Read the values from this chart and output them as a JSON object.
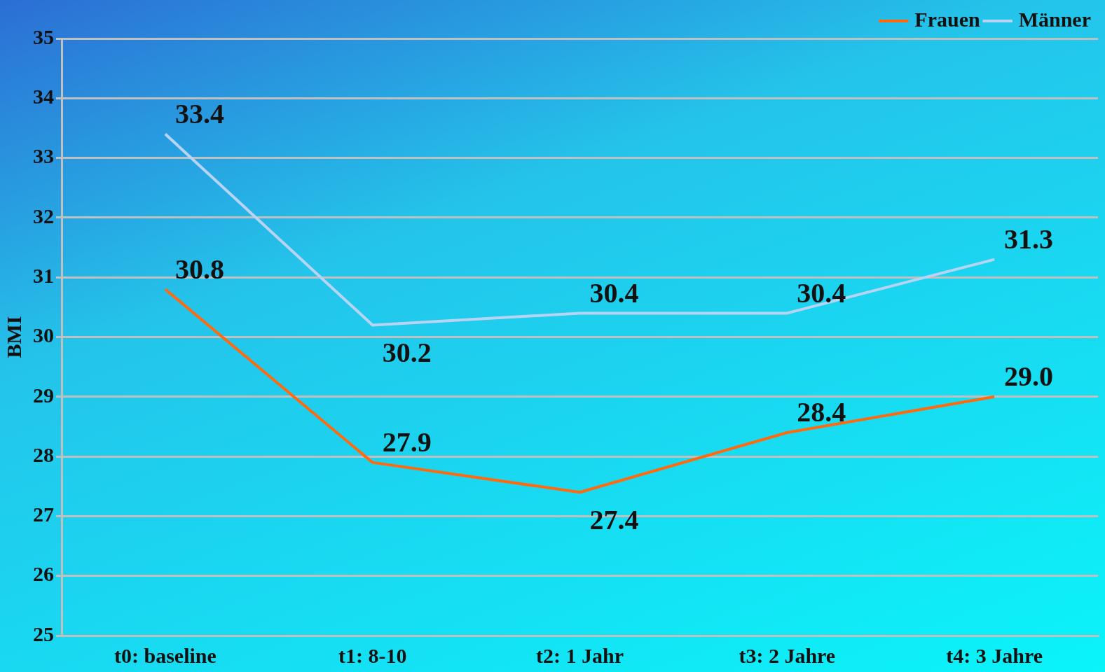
{
  "chart_data": {
    "type": "line",
    "ylabel": "BMI",
    "categories": [
      "t0: baseline",
      "t1: 8-10",
      "t2: 1 Jahr",
      "t3: 2 Jahre",
      "t4: 3 Jahre"
    ],
    "series": [
      {
        "name": "Frauen",
        "color": "#ff6a10",
        "values": [
          30.8,
          27.9,
          27.4,
          28.4,
          29.0
        ],
        "value_labels": [
          "30.8",
          "27.9",
          "27.4",
          "28.4",
          "29.0"
        ]
      },
      {
        "name": "Männer",
        "color": "#b8d4f4",
        "values": [
          33.4,
          30.2,
          30.4,
          30.4,
          31.3
        ],
        "value_labels": [
          "33.4",
          "30.2",
          "30.4",
          "30.4",
          "31.3"
        ]
      }
    ],
    "ylim": [
      25,
      35
    ],
    "yticks": [
      25,
      26,
      27,
      28,
      29,
      30,
      31,
      32,
      33,
      34,
      35
    ],
    "grid": "y",
    "legend": "top right",
    "marker": "none"
  }
}
